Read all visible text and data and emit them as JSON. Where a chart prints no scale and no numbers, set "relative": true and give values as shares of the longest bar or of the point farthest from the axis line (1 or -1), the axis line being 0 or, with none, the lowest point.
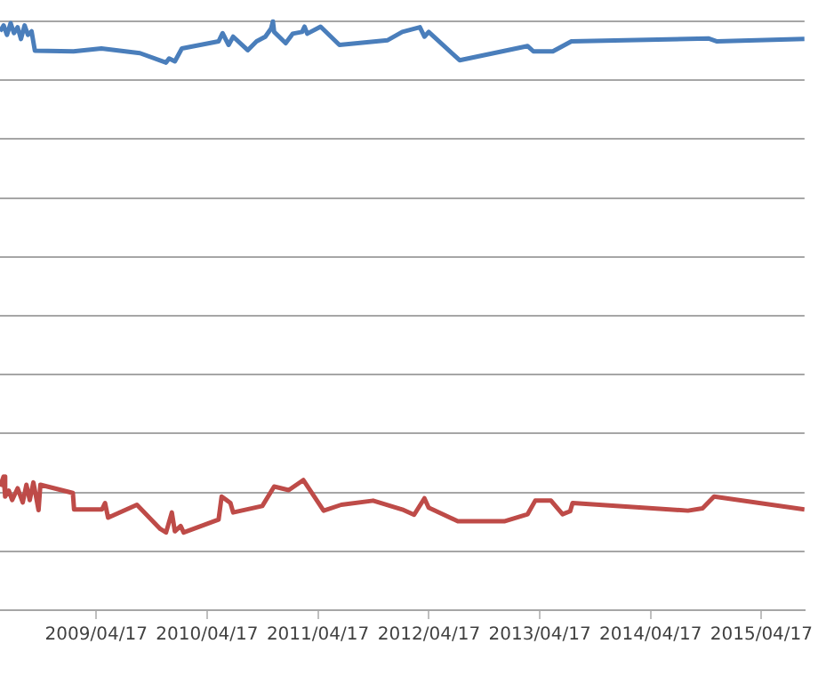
{
  "chart_data": {
    "type": "line",
    "relative": true,
    "grid": "y",
    "marker": "none",
    "line_style": "solid",
    "xlim": [
      "2008-06-04",
      "2015-09-06"
    ],
    "xticks": [
      {
        "value": "2009-04-17",
        "label": "2009/04/17"
      },
      {
        "value": "2010-04-17",
        "label": "2010/04/17"
      },
      {
        "value": "2011-04-17",
        "label": "2011/04/17"
      },
      {
        "value": "2012-04-17",
        "label": "2012/04/17"
      },
      {
        "value": "2013-04-17",
        "label": "2013/04/17"
      },
      {
        "value": "2014-04-17",
        "label": "2014/04/17"
      },
      {
        "value": "2015-04-17",
        "label": "2015/04/17"
      }
    ],
    "series": [
      {
        "color": "#4a7ebb",
        "x": [
          "2008-06-04",
          "2008-06-16",
          "2008-06-27",
          "2008-07-09",
          "2008-07-20",
          "2008-08-01",
          "2008-08-12",
          "2008-08-24",
          "2008-09-04",
          "2008-09-16",
          "2008-09-27",
          "2009-02-01",
          "2009-05-04",
          "2009-09-08",
          "2009-12-03",
          "2009-12-13",
          "2010-01-01",
          "2010-01-24",
          "2010-05-25",
          "2010-06-07",
          "2010-06-27",
          "2010-07-12",
          "2010-08-29",
          "2010-09-27",
          "2010-10-26",
          "2010-11-14",
          "2010-11-20",
          "2010-11-24",
          "2011-01-01",
          "2011-01-24",
          "2011-02-24",
          "2011-03-04",
          "2011-03-13",
          "2011-04-26",
          "2011-06-27",
          "2011-12-03",
          "2012-01-20",
          "2012-03-18",
          "2012-04-02",
          "2012-04-16",
          "2012-07-27",
          "2013-03-08",
          "2013-03-27",
          "2013-05-30",
          "2013-07-30",
          "2014-10-24",
          "2014-11-22",
          "2015-09-06"
        ],
        "values": [
          0.983,
          0.993,
          0.977,
          0.997,
          0.98,
          0.99,
          0.97,
          0.993,
          0.977,
          0.983,
          0.95,
          0.949,
          0.954,
          0.946,
          0.93,
          0.937,
          0.932,
          0.954,
          0.966,
          0.98,
          0.96,
          0.974,
          0.951,
          0.966,
          0.974,
          0.988,
          1,
          0.982,
          0.963,
          0.979,
          0.982,
          0.991,
          0.979,
          0.991,
          0.96,
          0.968,
          0.982,
          0.99,
          0.974,
          0.982,
          0.934,
          0.958,
          0.949,
          0.949,
          0.966,
          0.971,
          0.966,
          0.97
        ]
      },
      {
        "color": "#be4b48",
        "x": [
          "2008-06-04",
          "2008-06-16",
          "2008-06-21",
          "2008-07-03",
          "2008-07-14",
          "2008-08-01",
          "2008-08-18",
          "2008-08-30",
          "2008-09-10",
          "2008-09-22",
          "2008-10-09",
          "2008-10-15",
          "2009-01-30",
          "2009-02-03",
          "2009-05-06",
          "2009-05-16",
          "2009-05-26",
          "2009-08-29",
          "2009-11-14",
          "2009-12-03",
          "2009-12-22",
          "2010-01-01",
          "2010-01-20",
          "2010-01-30",
          "2010-05-25",
          "2010-06-04",
          "2010-07-03",
          "2010-07-12",
          "2010-10-16",
          "2010-11-24",
          "2011-01-11",
          "2011-02-28",
          "2011-05-06",
          "2011-07-03",
          "2011-10-16",
          "2012-01-20",
          "2012-02-28",
          "2012-04-02",
          "2012-04-16",
          "2012-07-21",
          "2012-12-21",
          "2013-03-08",
          "2013-04-02",
          "2013-05-24",
          "2013-07-01",
          "2013-07-26",
          "2013-08-03",
          "2014-08-18",
          "2014-10-05",
          "2014-11-12",
          "2015-09-06"
        ],
        "values": [
          0.21,
          0.227,
          0.193,
          0.203,
          0.187,
          0.207,
          0.183,
          0.213,
          0.187,
          0.217,
          0.17,
          0.213,
          0.199,
          0.171,
          0.171,
          0.182,
          0.157,
          0.179,
          0.138,
          0.132,
          0.166,
          0.134,
          0.143,
          0.132,
          0.154,
          0.193,
          0.182,
          0.166,
          0.177,
          0.21,
          0.204,
          0.221,
          0.169,
          0.179,
          0.186,
          0.171,
          0.162,
          0.19,
          0.174,
          0.151,
          0.151,
          0.163,
          0.186,
          0.186,
          0.163,
          0.168,
          0.182,
          0.169,
          0.173,
          0.193,
          0.171
        ]
      }
    ]
  }
}
